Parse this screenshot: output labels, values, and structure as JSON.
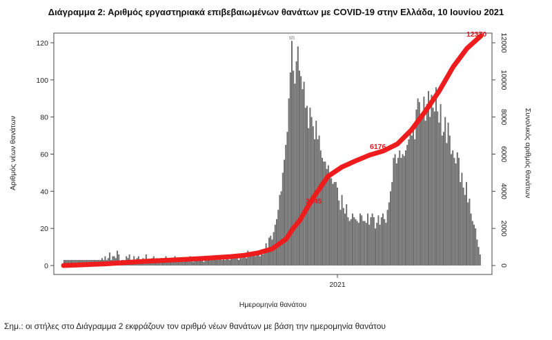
{
  "title": "Διάγραμμα 2: Αριθμός εργαστηριακά επιβεβαιωμένων θανάτων με COVID-19 στην Ελλάδα, 10 Ιουνίου 2021",
  "note": "Σημ.: οι στήλες στο Διάγραμμα 2 εκφράζουν τον αριθμό νέων θανάτων με βάση την ημερομηνία θανάτου",
  "colors": {
    "bars": "#6f6f6f",
    "line": "#ee1c1c",
    "annotation": "#e8141c"
  },
  "chart_data": {
    "type": "bar",
    "xlabel": "Ημερομηνία θανάτου",
    "ylabel": "Αριθμός νέων θανάτων",
    "y2label": "Συνολικός αριθμός θανάτων",
    "x_ticks": [
      "2021"
    ],
    "y_ticks": [
      "0",
      "20",
      "40",
      "60",
      "80",
      "100",
      "120"
    ],
    "y2_ticks": [
      "0",
      "2000",
      "4000",
      "6000",
      "8000",
      "10000",
      "12000"
    ],
    "ylim": [
      0,
      120
    ],
    "y2lim": [
      0,
      12000
    ],
    "grid": false,
    "legend": "none",
    "series": [
      {
        "role": "daily",
        "values": [
          3,
          3,
          3,
          3,
          3,
          3,
          3,
          3,
          3,
          3,
          3,
          3,
          3,
          3,
          3,
          3,
          3,
          3,
          3,
          3,
          3,
          3,
          3,
          3,
          3,
          4,
          3,
          5,
          3,
          4,
          7,
          3,
          5,
          5,
          4,
          8,
          6,
          2,
          3,
          3,
          2,
          5,
          4,
          6,
          3,
          2,
          5,
          3,
          4,
          5,
          2,
          3,
          4,
          3,
          6,
          3,
          2,
          3,
          4,
          5,
          3,
          4,
          3,
          3,
          4,
          2,
          3,
          5,
          3,
          4,
          2,
          3,
          3,
          5,
          3,
          4,
          3,
          2,
          3,
          3,
          4,
          3,
          3,
          5,
          3,
          2,
          3,
          4,
          3,
          3,
          4,
          3,
          2,
          5,
          3,
          3,
          4,
          3,
          4,
          5,
          3,
          3,
          4,
          4,
          3,
          5,
          3,
          4,
          6,
          3,
          5,
          4,
          6,
          5,
          5,
          3,
          4,
          4,
          5,
          6,
          4,
          8,
          5,
          5,
          6,
          7,
          5,
          6,
          8,
          5,
          7,
          6,
          9,
          12,
          9,
          15,
          16,
          14,
          18,
          22,
          25,
          30,
          38,
          40,
          50,
          57,
          65,
          72,
          90,
          104,
          121,
          105,
          98,
          110,
          118,
          105,
          102,
          95,
          99,
          85,
          86,
          74,
          85,
          80,
          75,
          68,
          78,
          68,
          70,
          62,
          58,
          56,
          56,
          52,
          54,
          49,
          47,
          44,
          45,
          45,
          42,
          35,
          30,
          38,
          31,
          28,
          33,
          26,
          24,
          25,
          28,
          26,
          25,
          24,
          23,
          28,
          27,
          24,
          24,
          23,
          28,
          22,
          26,
          28,
          26,
          20,
          23,
          27,
          22,
          26,
          28,
          25,
          23,
          30,
          34,
          40,
          45,
          58,
          60,
          55,
          58,
          62,
          58,
          60,
          59,
          62,
          65,
          68,
          72,
          70,
          74,
          68,
          84,
          90,
          88,
          80,
          82,
          91,
          78,
          87,
          94,
          80,
          92,
          85,
          83,
          96,
          83,
          77,
          87,
          70,
          72,
          80,
          66,
          77,
          70,
          60,
          62,
          58,
          55,
          61,
          58,
          45,
          50,
          42,
          38,
          45,
          34,
          36,
          28,
          24,
          22,
          20,
          14,
          10,
          6
        ],
        "peak_label": "121"
      },
      {
        "role": "cumulative",
        "x": [
          0,
          10,
          20,
          30,
          40,
          60,
          80,
          100,
          120,
          130,
          140,
          150,
          160,
          165,
          170,
          175,
          180,
          190,
          200,
          210,
          220,
          230,
          240,
          250,
          260,
          270,
          280,
          290,
          300
        ],
        "values": [
          0,
          30,
          60,
          90,
          140,
          230,
          300,
          380,
          480,
          550,
          680,
          900,
          1430,
          2000,
          2450,
          3100,
          3700,
          4800,
          5300,
          5640,
          5950,
          6176,
          6550,
          7300,
          8300,
          9400,
          10700,
          11700,
          12370
        ]
      }
    ],
    "annotations": [
      "3145",
      "6176",
      "12370"
    ]
  }
}
